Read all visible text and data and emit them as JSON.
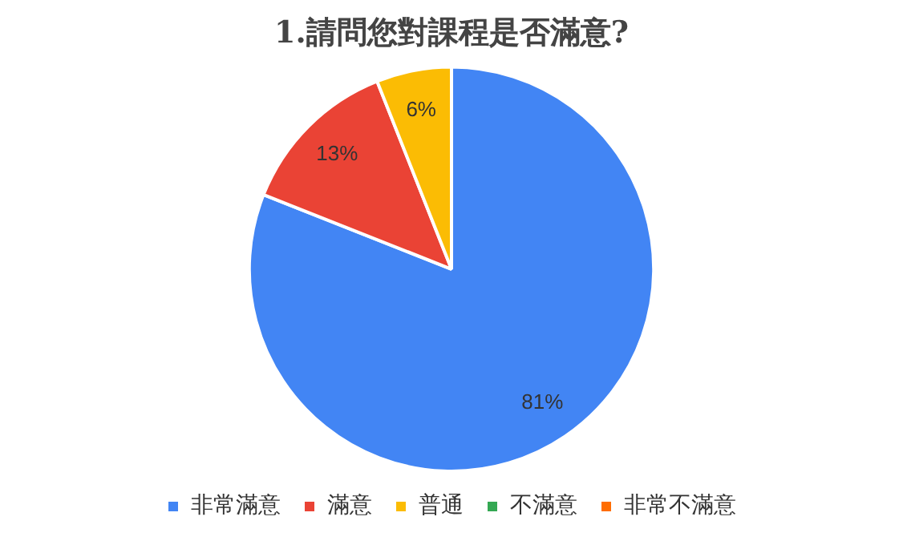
{
  "chart_data": {
    "type": "pie",
    "title": "1.請問您對課程是否滿意?",
    "categories": [
      "非常滿意",
      "滿意",
      "普通",
      "不滿意",
      "非常不滿意"
    ],
    "values": [
      81,
      13,
      6,
      0,
      0
    ],
    "colors": [
      "#4285f4",
      "#ea4335",
      "#fbbc04",
      "#34a853",
      "#ff6d01"
    ],
    "value_labels": [
      "81%",
      "13%",
      "6%",
      null,
      null
    ],
    "legend": "bottom"
  }
}
